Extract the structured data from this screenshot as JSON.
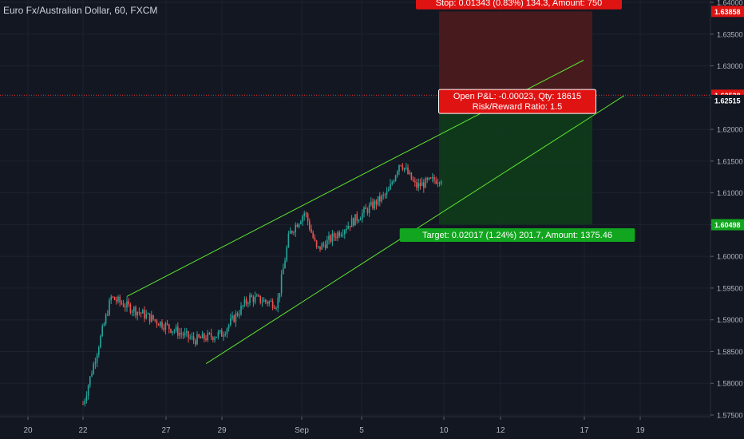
{
  "header": {
    "symbol": "Euro Fx/Australian Dollar, 60, FXCM"
  },
  "colors": {
    "background": "#131722",
    "up": "#26a69a",
    "down": "#ef5350",
    "channel": "#5ce62e",
    "stop_zone": "#4a1a1e",
    "target_zone": "#0f3a1b",
    "label_red": "#e01313",
    "label_green": "#12a51f",
    "axis_text": "#b2b5be",
    "price_line": "#e53935"
  },
  "chart_data": {
    "type": "candlestick",
    "x_ticks": [
      "20",
      "22",
      "27",
      "29",
      "Sep",
      "5",
      "10",
      "12",
      "17",
      "19"
    ],
    "y_ticks": [
      "1.57500",
      "1.58000",
      "1.58500",
      "1.59000",
      "1.59500",
      "1.60000",
      "1.60500",
      "1.61000",
      "1.61500",
      "1.62000",
      "1.62500",
      "1.63000",
      "1.63500",
      "1.64000"
    ],
    "y_range": [
      1.5745,
      1.6418
    ],
    "price_tags": {
      "stop": "1.63858",
      "current": "1.62538",
      "entry": "1.62515",
      "target": "1.60498"
    },
    "stop_price": 1.63858,
    "entry_price": 1.62515,
    "target_price": 1.60498,
    "current_price": 1.62538,
    "labels": {
      "stop": "Stop: 0.01343 (0.83%) 134.3, Amount: 750",
      "open_pl": "Open P&L: -0.00023, Qty: 18615",
      "risk_reward": "Risk/Reward Ratio: 1.5",
      "target": "Target: 0.02017 (1.24%) 201.7, Amount: 1375.46"
    },
    "channel": {
      "upper": [
        {
          "x": "Aug 23",
          "y": 1.5937
        },
        {
          "x": "Sep 9",
          "y": 1.6309
        }
      ],
      "lower": [
        {
          "x": "Aug 26",
          "y": 1.5831
        },
        {
          "x": "Sep 10",
          "y": 1.6253
        }
      ]
    },
    "price_path": [
      {
        "x": "Aug 21",
        "y": 1.5735
      },
      {
        "x": "Aug 22",
        "y": 1.5768
      },
      {
        "x": "Aug 23",
        "y": 1.5935
      },
      {
        "x": "Aug 23",
        "y": 1.5925
      },
      {
        "x": "Aug 26",
        "y": 1.5868
      },
      {
        "x": "Aug 27",
        "y": 1.5878
      },
      {
        "x": "Aug 28",
        "y": 1.5935
      },
      {
        "x": "Aug 29",
        "y": 1.5925
      },
      {
        "x": "Aug 29",
        "y": 1.6035
      },
      {
        "x": "Aug 30",
        "y": 1.607
      },
      {
        "x": "Aug 30",
        "y": 1.601
      },
      {
        "x": "Sep 2",
        "y": 1.61
      },
      {
        "x": "Sep 2",
        "y": 1.615
      },
      {
        "x": "Sep 3",
        "y": 1.611
      },
      {
        "x": "Sep 4",
        "y": 1.6125
      },
      {
        "x": "Sep 4",
        "y": 1.606
      },
      {
        "x": "Sep 5",
        "y": 1.614
      },
      {
        "x": "Sep 6",
        "y": 1.617
      },
      {
        "x": "Sep 6",
        "y": 1.6205
      },
      {
        "x": "Sep 9",
        "y": 1.614
      },
      {
        "x": "Sep 9",
        "y": 1.6285
      },
      {
        "x": "Sep 9",
        "y": 1.621
      },
      {
        "x": "Sep 10",
        "y": 1.628
      },
      {
        "x": "Sep 10",
        "y": 1.6254
      }
    ]
  }
}
